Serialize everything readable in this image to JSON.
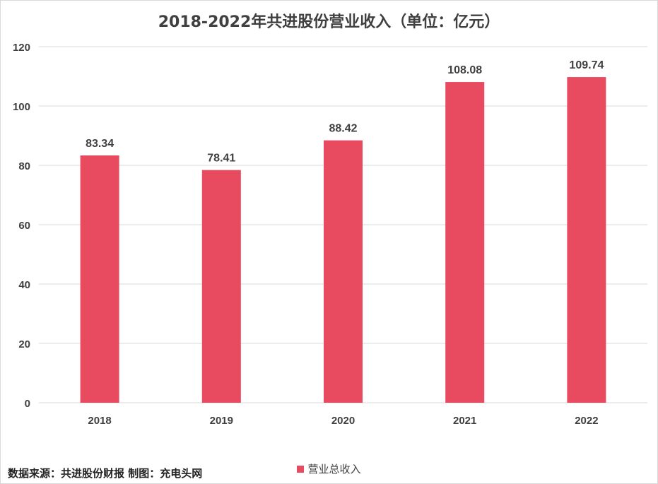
{
  "chart_data": {
    "type": "bar",
    "title": "2018-2022年共进股份营业收入（单位：亿元）",
    "categories": [
      "2018",
      "2019",
      "2020",
      "2021",
      "2022"
    ],
    "series": [
      {
        "name": "营业总收入",
        "values": [
          83.34,
          78.41,
          88.42,
          108.08,
          109.74
        ]
      }
    ],
    "data_labels": [
      "83.34",
      "78.41",
      "88.42",
      "108.08",
      "109.74"
    ],
    "yticks": [
      0,
      20,
      40,
      60,
      80,
      100,
      120
    ],
    "ylim": [
      0,
      120
    ],
    "grid": true,
    "legend_position": "bottom",
    "bar_color": "#e84a5f",
    "xlabel": "",
    "ylabel": ""
  },
  "legend": {
    "label": "营业总收入"
  },
  "source": "数据来源：共进股份财报  制图：充电头网"
}
